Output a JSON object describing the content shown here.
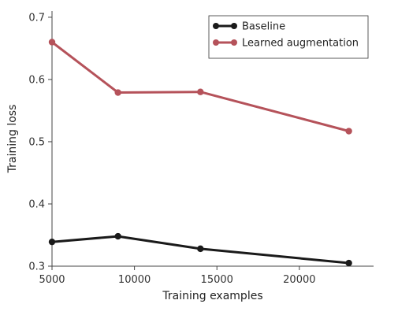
{
  "chart_data": {
    "type": "line",
    "xlabel": "Training examples",
    "ylabel": "Training loss",
    "xlim": [
      5000,
      24500
    ],
    "ylim": [
      0.3,
      0.71
    ],
    "xticks": [
      5000,
      10000,
      15000,
      20000
    ],
    "xtick_labels": [
      "5000",
      "10000",
      "15000",
      "20000"
    ],
    "yticks": [
      0.3,
      0.4,
      0.5,
      0.6,
      0.7
    ],
    "ytick_labels": [
      "0.3",
      "0.4",
      "0.5",
      "0.6",
      "0.7"
    ],
    "x": [
      5000,
      9000,
      14000,
      23000
    ],
    "grid": false,
    "legend_position": "top-right",
    "series": [
      {
        "name": "Baseline",
        "color": "#1a1a1a",
        "values": [
          0.339,
          0.348,
          0.328,
          0.305
        ]
      },
      {
        "name": "Learned augmentation",
        "color": "#b5525a",
        "values": [
          0.66,
          0.579,
          0.58,
          0.517
        ]
      }
    ]
  }
}
